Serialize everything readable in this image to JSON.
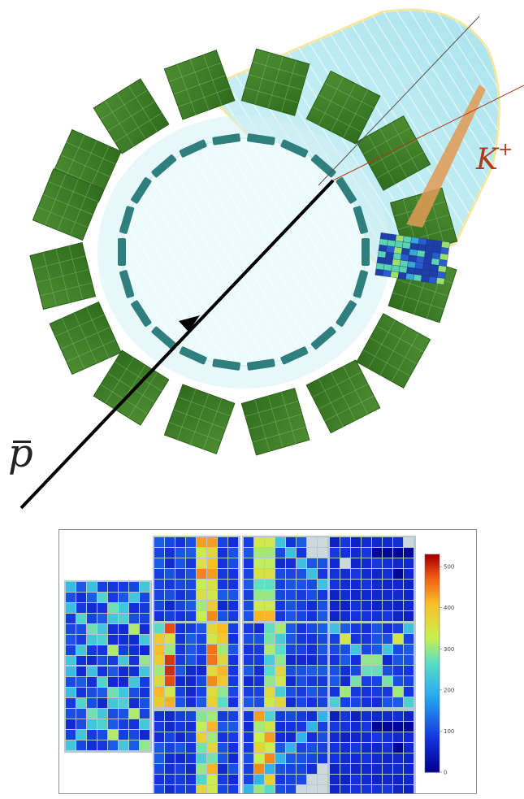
{
  "labels": {
    "kaon": "K",
    "kaon_charge": "+",
    "antiproton": "p"
  },
  "colorbar": {
    "ticks": [
      "500",
      "400",
      "300",
      "200",
      "100",
      "0"
    ],
    "range": [
      0,
      530
    ]
  },
  "colors": {
    "crystal_module": "#3f7f26",
    "crystal_grid": "#9bc48a",
    "tracker_segment": "#2f7f7f",
    "cone_fill": "#bfeef2",
    "kaon_track": "#e09a55",
    "beam": "#000000"
  }
}
